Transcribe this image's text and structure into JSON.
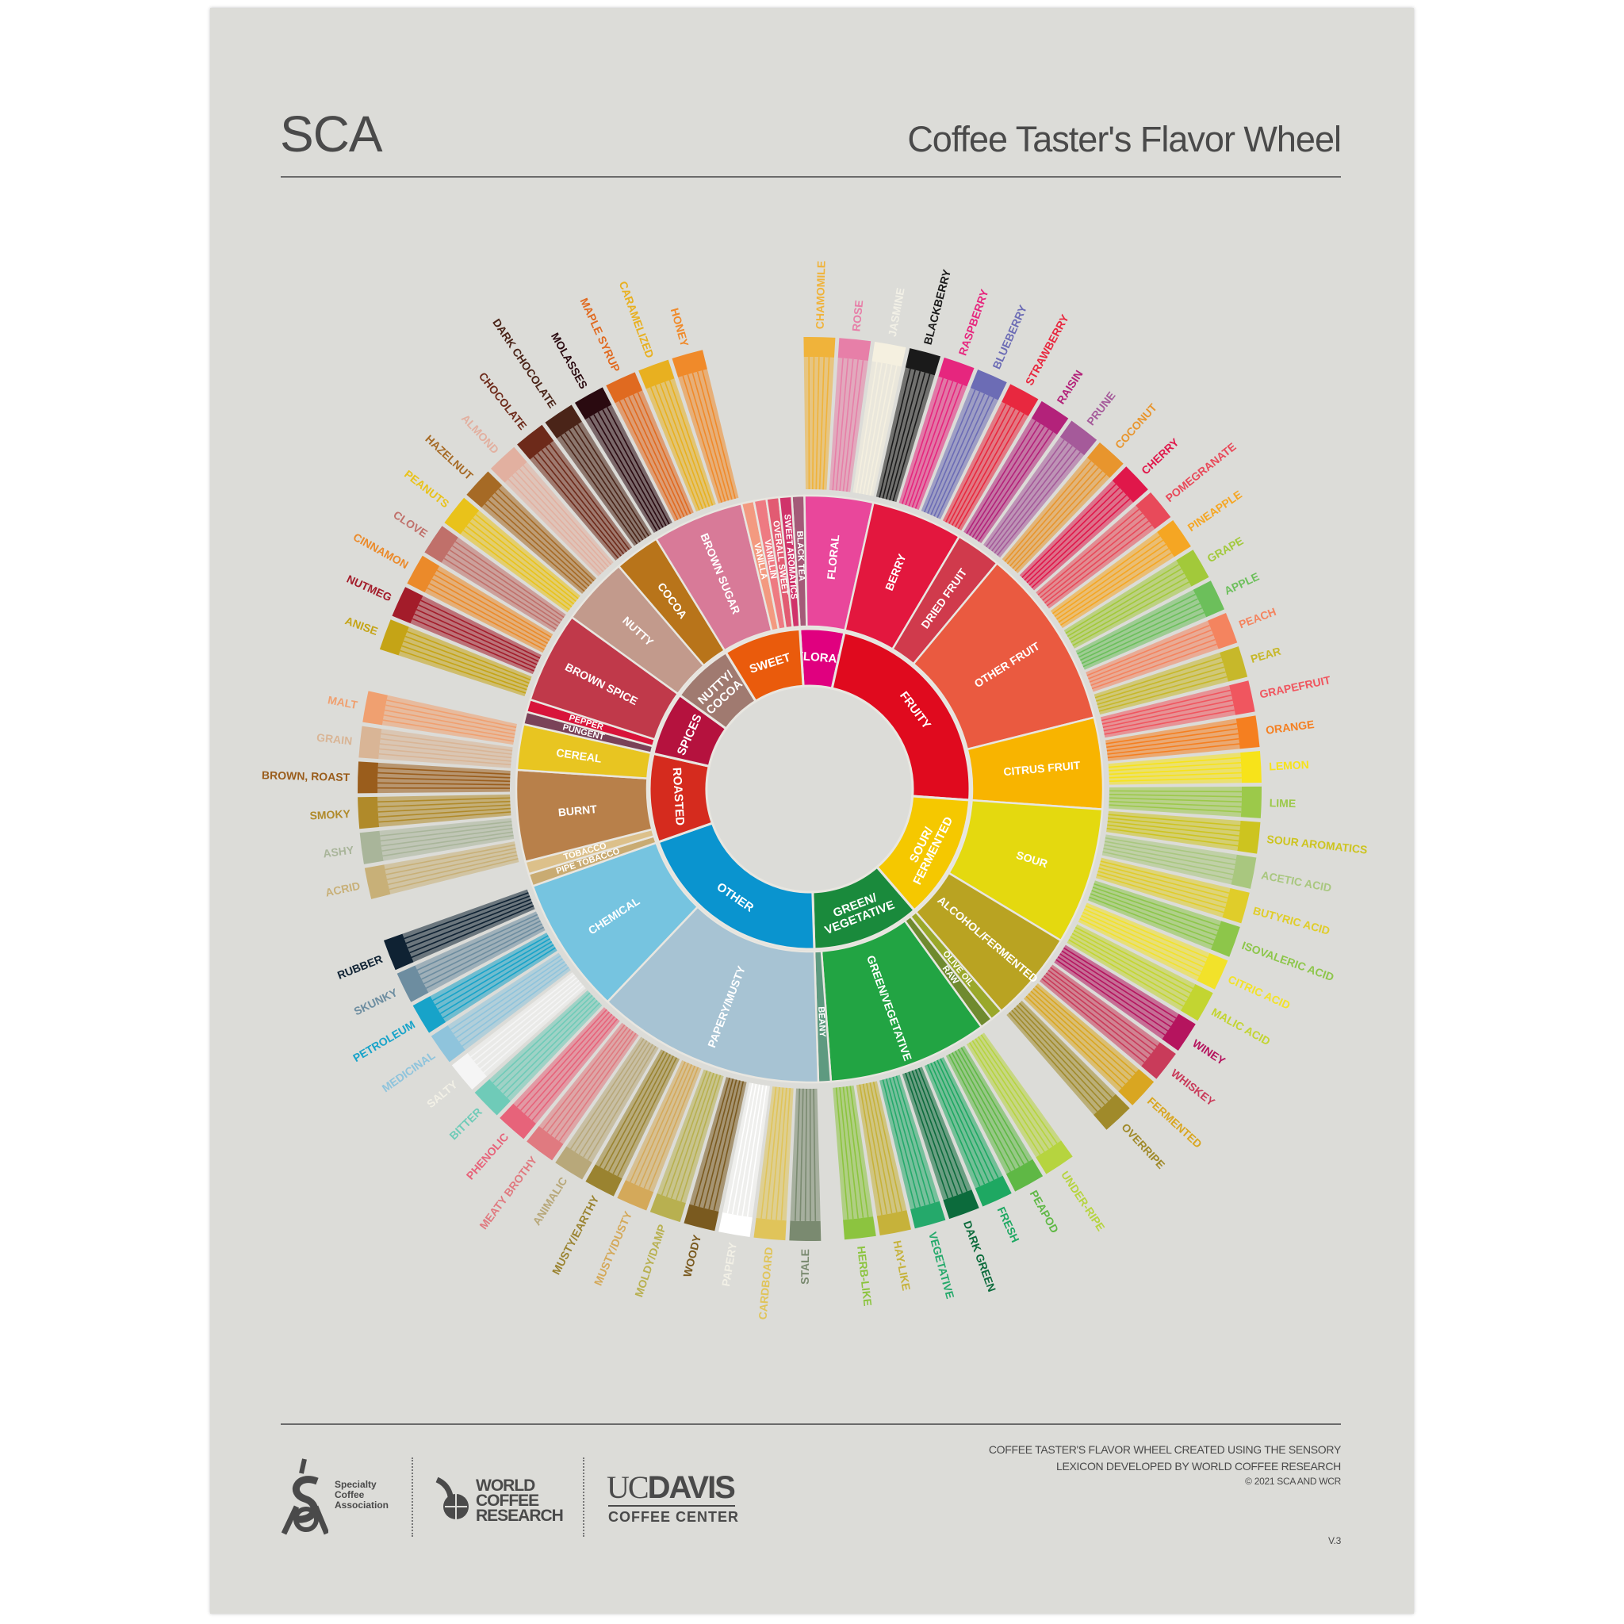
{
  "header": {
    "org": "SCA",
    "title": "Coffee Taster's Flavor Wheel"
  },
  "footer": {
    "credit_lines": [
      "COFFEE TASTER'S FLAVOR WHEEL CREATED USING THE SENSORY",
      "LEXICON DEVELOPED BY WORLD COFFEE RESEARCH",
      "© 2021 SCA AND WCR"
    ],
    "version": "V.3",
    "logos": {
      "sca": [
        "Specialty",
        "Coffee",
        "Association"
      ],
      "wcr": [
        "WORLD",
        "COFFEE",
        "RESEARCH"
      ],
      "ucdavis": {
        "uc": "UC",
        "davis": "DAVIS",
        "center": "COFFEE CENTER"
      }
    }
  },
  "chart_data": {
    "type": "sunburst",
    "wheel": [
      {
        "name": "FLORAL",
        "color": "#e0007f",
        "children": [
          {
            "name": "BLACK TEA",
            "color": "#a45a78"
          },
          {
            "name": "FLORAL",
            "color": "#e9479b",
            "children": [
              {
                "name": "CHAMOMILE",
                "color": "#f0b33a"
              },
              {
                "name": "ROSE",
                "color": "#e77fa8"
              },
              {
                "name": "JASMINE",
                "color": "#f5f0e0"
              }
            ]
          }
        ]
      },
      {
        "name": "FRUITY",
        "color": "#e00a1e",
        "children": [
          {
            "name": "BERRY",
            "color": "#e3173e",
            "children": [
              {
                "name": "BLACKBERRY",
                "color": "#1a1a1a"
              },
              {
                "name": "RASPBERRY",
                "color": "#e6267e"
              },
              {
                "name": "BLUEBERRY",
                "color": "#6c6cb5"
              },
              {
                "name": "STRAWBERRY",
                "color": "#e8283f"
              }
            ]
          },
          {
            "name": "DRIED FRUIT",
            "color": "#d03a4c",
            "children": [
              {
                "name": "RAISIN",
                "color": "#b3227a"
              },
              {
                "name": "PRUNE",
                "color": "#a55a9a"
              }
            ]
          },
          {
            "name": "OTHER FRUIT",
            "color": "#ea5a40",
            "children": [
              {
                "name": "COCONUT",
                "color": "#e8952d"
              },
              {
                "name": "CHERRY",
                "color": "#e0174a"
              },
              {
                "name": "POMEGRANATE",
                "color": "#e84a5a"
              },
              {
                "name": "PINEAPPLE",
                "color": "#f5a623"
              },
              {
                "name": "GRAPE",
                "color": "#a2c93a"
              },
              {
                "name": "APPLE",
                "color": "#6cbf5b"
              },
              {
                "name": "PEACH",
                "color": "#f4845f"
              },
              {
                "name": "PEAR",
                "color": "#c7b82a"
              }
            ]
          },
          {
            "name": "CITRUS FRUIT",
            "color": "#f8b400",
            "children": [
              {
                "name": "GRAPEFRUIT",
                "color": "#f0565f"
              },
              {
                "name": "ORANGE",
                "color": "#f57f20"
              },
              {
                "name": "LEMON",
                "color": "#f7e31a"
              },
              {
                "name": "LIME",
                "color": "#9cc94a"
              }
            ]
          }
        ]
      },
      {
        "name": "SOUR/ FERMENTED",
        "color": "#f5c800",
        "children": [
          {
            "name": "SOUR",
            "color": "#e4d90f",
            "children": [
              {
                "name": "SOUR AROMATICS",
                "color": "#cdc41f"
              },
              {
                "name": "ACETIC ACID",
                "color": "#a9c77f"
              },
              {
                "name": "BUTYRIC ACID",
                "color": "#e0cd2a"
              },
              {
                "name": "ISOVALERIC ACID",
                "color": "#8dc64a"
              },
              {
                "name": "CITRIC ACID",
                "color": "#f2e22a"
              },
              {
                "name": "MALIC ACID",
                "color": "#c3d531"
              }
            ]
          },
          {
            "name": "ALCOHOL/FERMENTED",
            "color": "#b9a322",
            "children": [
              {
                "name": "WINEY",
                "color": "#b5145e"
              },
              {
                "name": "WHISKEY",
                "color": "#c93b5a"
              },
              {
                "name": "FERMENTED",
                "color": "#d9a621"
              },
              {
                "name": "OVERRIPE",
                "color": "#a08a2a"
              }
            ]
          }
        ]
      },
      {
        "name": "GREEN/ VEGETATIVE",
        "color": "#1a8a3c",
        "children": [
          {
            "name": "OLIVE OIL",
            "color": "#9aa82a"
          },
          {
            "name": "RAW",
            "color": "#6f8a2f"
          },
          {
            "name": "GREEN/VEGETATIVE",
            "color": "#22a443",
            "children": [
              {
                "name": "UNDER-RIPE",
                "color": "#b6d43f"
              },
              {
                "name": "PEAPOD",
                "color": "#5fb845"
              },
              {
                "name": "FRESH",
                "color": "#1ea862"
              },
              {
                "name": "DARK GREEN",
                "color": "#0c6b3c"
              },
              {
                "name": "VEGETATIVE",
                "color": "#25a96b"
              },
              {
                "name": "HAY-LIKE",
                "color": "#c6b23a"
              },
              {
                "name": "HERB-LIKE",
                "color": "#8cc43f"
              }
            ]
          },
          {
            "name": "BEANY",
            "color": "#5e9a80"
          }
        ]
      },
      {
        "name": "OTHER",
        "color": "#0a94cf",
        "children": [
          {
            "name": "PAPERY/MUSTY",
            "color": "#a7c3d3",
            "children": [
              {
                "name": "STALE",
                "color": "#7a8a70"
              },
              {
                "name": "CARDBOARD",
                "color": "#e0c45a"
              },
              {
                "name": "PAPERY",
                "color": "#ffffff"
              },
              {
                "name": "WOODY",
                "color": "#7a5a1f"
              },
              {
                "name": "MOLDY/DAMP",
                "color": "#b8b050"
              },
              {
                "name": "MUSTY/DUSTY",
                "color": "#d4a95a"
              },
              {
                "name": "MUSTY/EARTHY",
                "color": "#9a8330"
              },
              {
                "name": "ANIMALIC",
                "color": "#b8a87a"
              },
              {
                "name": "MEATY BROTHY",
                "color": "#e07a80"
              },
              {
                "name": "PHENOLIC",
                "color": "#e7637a"
              }
            ]
          },
          {
            "name": "CHEMICAL",
            "color": "#76c4e0",
            "children": [
              {
                "name": "BITTER",
                "color": "#6fcbb8"
              },
              {
                "name": "SALTY",
                "color": "#f5f5f5"
              },
              {
                "name": "MEDICINAL",
                "color": "#8fc4dc"
              },
              {
                "name": "PETROLEUM",
                "color": "#17a3c9"
              },
              {
                "name": "SKUNKY",
                "color": "#6d8da0"
              },
              {
                "name": "RUBBER",
                "color": "#0f2233"
              }
            ]
          }
        ]
      },
      {
        "name": "ROASTED",
        "color": "#d52b1e",
        "children": [
          {
            "name": "PIPE TOBACCO",
            "color": "#c9ab72"
          },
          {
            "name": "TOBACCO",
            "color": "#dcc08a"
          },
          {
            "name": "BURNT",
            "color": "#b8804a",
            "children": [
              {
                "name": "ACRID",
                "color": "#c8b078"
              },
              {
                "name": "ASHY",
                "color": "#a9b59a"
              },
              {
                "name": "SMOKY",
                "color": "#b08a2a"
              },
              {
                "name": "BROWN, ROAST",
                "color": "#9a5d1c"
              }
            ]
          },
          {
            "name": "CEREAL",
            "color": "#e8c521",
            "children": [
              {
                "name": "GRAIN",
                "color": "#d9b596"
              },
              {
                "name": "MALT",
                "color": "#f0a070"
              }
            ]
          }
        ]
      },
      {
        "name": "SPICES",
        "color": "#b5123e",
        "children": [
          {
            "name": "PUNGENT",
            "color": "#7a4258"
          },
          {
            "name": "PEPPER",
            "color": "#d8143a"
          },
          {
            "name": "BROWN SPICE",
            "color": "#c0394a",
            "children": [
              {
                "name": "ANISE",
                "color": "#c5a416"
              },
              {
                "name": "NUTMEG",
                "color": "#a31c2a"
              },
              {
                "name": "CINNAMON",
                "color": "#eb8a2a"
              },
              {
                "name": "CLOVE",
                "color": "#c0706a"
              }
            ]
          }
        ]
      },
      {
        "name": "NUTTY/ COCOA",
        "color": "#a07a70",
        "children": [
          {
            "name": "NUTTY",
            "color": "#c29a8c",
            "children": [
              {
                "name": "PEANUTS",
                "color": "#e9c21a"
              },
              {
                "name": "HAZELNUT",
                "color": "#a66a25"
              },
              {
                "name": "ALMOND",
                "color": "#e2b0a0"
              }
            ]
          },
          {
            "name": "COCOA",
            "color": "#b8741a",
            "children": [
              {
                "name": "CHOCOLATE",
                "color": "#6d2a1a"
              },
              {
                "name": "DARK CHOCOLATE",
                "color": "#4a2418"
              }
            ]
          }
        ]
      },
      {
        "name": "SWEET",
        "color": "#ea5b0c",
        "children": [
          {
            "name": "BROWN SUGAR",
            "color": "#d87a98",
            "children": [
              {
                "name": "MOLASSES",
                "color": "#2a0a10"
              },
              {
                "name": "MAPLE SYRUP",
                "color": "#e06a20"
              },
              {
                "name": "CARAMELIZED",
                "color": "#e8b020"
              },
              {
                "name": "HONEY",
                "color": "#f08a2a"
              }
            ]
          },
          {
            "name": "VANILLA",
            "color": "#f39a80"
          },
          {
            "name": "VANILLIN",
            "color": "#ee7a82"
          },
          {
            "name": "OVERALL SWEET",
            "color": "#e25b72"
          },
          {
            "name": "SWEET AROMATICS",
            "color": "#d0336a"
          }
        ]
      }
    ]
  }
}
